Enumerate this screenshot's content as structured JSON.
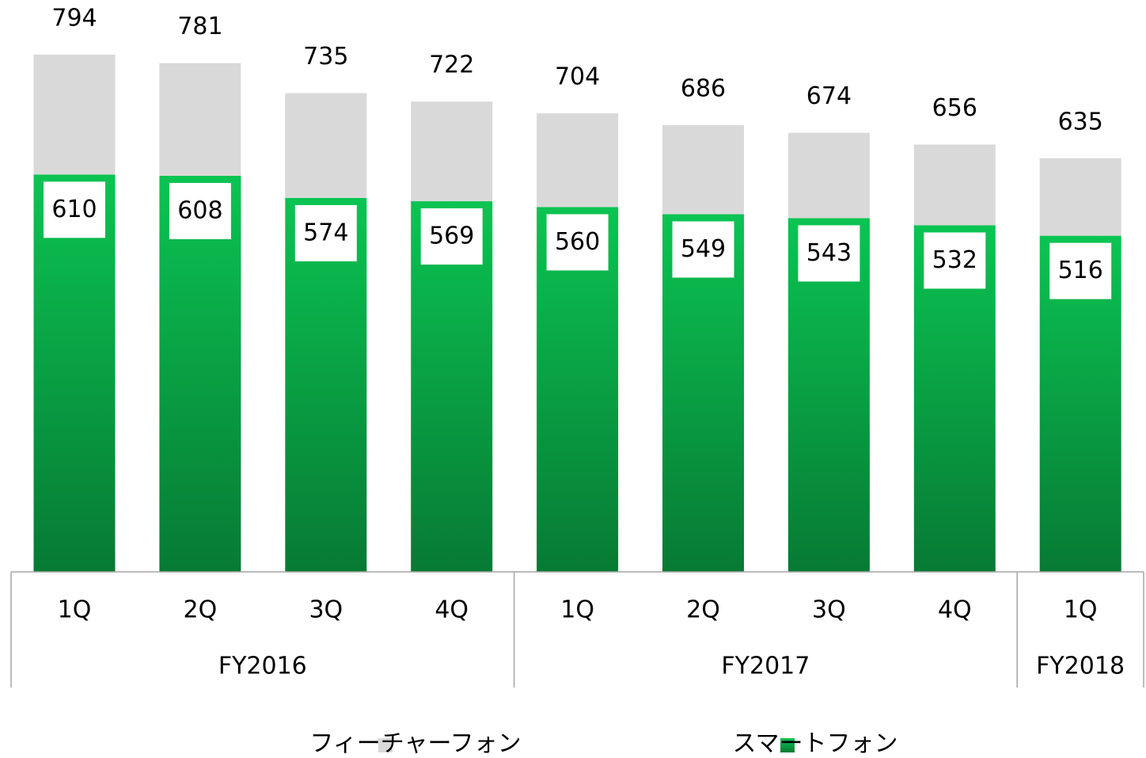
{
  "chart_data": {
    "type": "stacked_bar",
    "groups": [
      {
        "name": "FY2016",
        "quarters": [
          "1Q",
          "2Q",
          "3Q",
          "4Q"
        ]
      },
      {
        "name": "FY2017",
        "quarters": [
          "1Q",
          "2Q",
          "3Q",
          "4Q"
        ]
      },
      {
        "name": "FY2018",
        "quarters": [
          "1Q"
        ]
      }
    ],
    "series": [
      {
        "name": "スマートフォン",
        "color": "#09b34a",
        "values": [
          610,
          608,
          574,
          569,
          560,
          549,
          543,
          532,
          516
        ]
      },
      {
        "name": "フィーチャーフォン",
        "color": "#d9d9d9",
        "values": [
          184,
          173,
          161,
          153,
          144,
          137,
          131,
          124,
          119
        ]
      }
    ],
    "totals": [
      794,
      781,
      735,
      722,
      704,
      686,
      674,
      656,
      635
    ]
  }
}
